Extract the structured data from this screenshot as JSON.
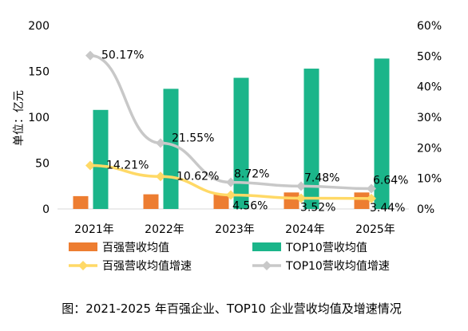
{
  "chart_data": {
    "type": "bar",
    "categories": [
      "2021年",
      "2022年",
      "2023年",
      "2024年",
      "2025年"
    ],
    "y_left": {
      "label": "单位：亿元",
      "ylim": [
        0,
        200
      ],
      "ticks": [
        0,
        50,
        100,
        150,
        200
      ]
    },
    "y_right": {
      "ylim": [
        0,
        0.6
      ],
      "ticks": [
        "0%",
        "10%",
        "20%",
        "30%",
        "40%",
        "50%",
        "60%"
      ]
    },
    "series": [
      {
        "name": "百强营收均值",
        "kind": "bar",
        "axis": "left",
        "color": "#ED7D31",
        "values": [
          14,
          16,
          16,
          18,
          18
        ]
      },
      {
        "name": "TOP10营收均值",
        "kind": "bar",
        "axis": "left",
        "color": "#1BB58A",
        "values": [
          108,
          131,
          143,
          153,
          164
        ]
      },
      {
        "name": "百强营收均值增速",
        "kind": "line",
        "axis": "right",
        "color": "#FFD966",
        "values": [
          0.1421,
          0.1062,
          0.0456,
          0.0352,
          0.0344
        ],
        "labels": [
          "14.21%",
          "10.62%",
          "4.56%",
          "3.52%",
          "3.44%"
        ]
      },
      {
        "name": "TOP10营收均值增速",
        "kind": "line",
        "axis": "right",
        "color": "#C8C8C8",
        "values": [
          0.5017,
          0.2155,
          0.0872,
          0.0748,
          0.0664
        ],
        "labels": [
          "50.17%",
          "21.55%",
          "8.72%",
          "7.48%",
          "6.64%"
        ]
      }
    ],
    "grid": false,
    "legend_position": "bottom"
  },
  "caption": "图：2021-2025 年百强企业、TOP10 企业营收均值及增速情况"
}
